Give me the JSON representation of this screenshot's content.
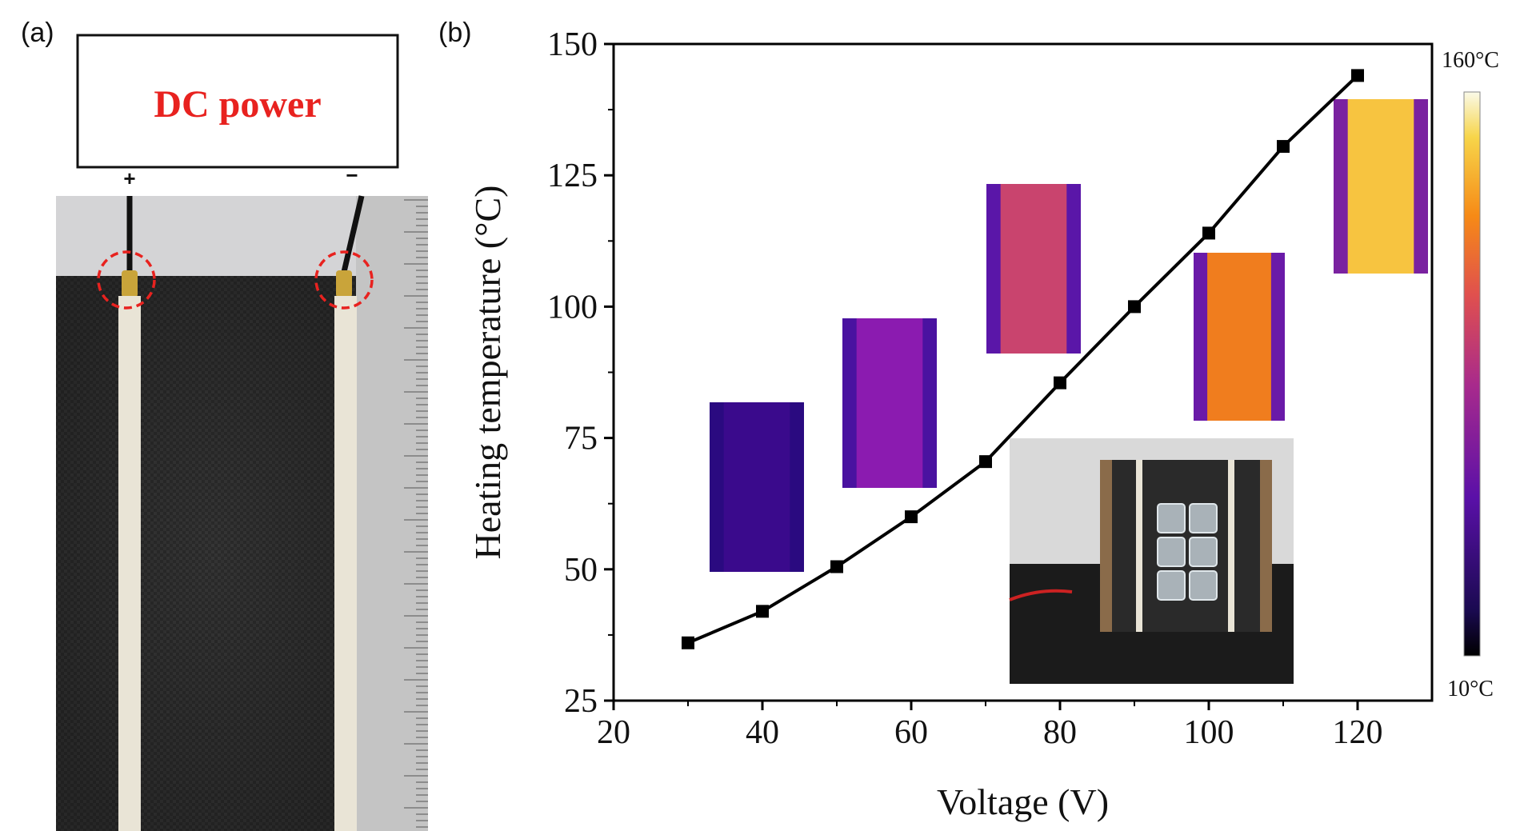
{
  "panel_a": {
    "label": "(a)",
    "power_label": "DC power",
    "plus_sign": "+",
    "minus_sign": "−"
  },
  "panel_b": {
    "label": "(b)"
  },
  "colorbar": {
    "max_label": "160°C",
    "min_label": "10°C"
  },
  "chart_data": {
    "type": "line",
    "title": "",
    "xlabel": "Voltage (V)",
    "ylabel": "Heating temperature (°C)",
    "xlim": [
      20,
      130
    ],
    "ylim": [
      25,
      150
    ],
    "xticks": [
      20,
      40,
      60,
      80,
      100,
      120
    ],
    "yticks": [
      25,
      50,
      75,
      100,
      125,
      150
    ],
    "marker": "square",
    "line_color": "#000000",
    "grid": false,
    "series": [
      {
        "x": [
          30,
          40,
          50,
          60,
          70,
          80,
          90,
          100,
          110,
          120
        ],
        "y": [
          36,
          42,
          50.5,
          60,
          70.5,
          85.5,
          100,
          114,
          130.5,
          144
        ]
      }
    ]
  },
  "thermal_insets": [
    {
      "id": "thermal-30v",
      "core": "#3a0a8c",
      "edge": "#2a0a80"
    },
    {
      "id": "thermal-50v",
      "core": "#8b1bb0",
      "edge": "#4a12a0"
    },
    {
      "id": "thermal-70v",
      "core": "#c9446e",
      "edge": "#5a16a8"
    },
    {
      "id": "thermal-90v",
      "core": "#f07d1e",
      "edge": "#6a1aa8"
    },
    {
      "id": "thermal-120v",
      "core": "#f7c440",
      "edge": "#7a22a0"
    }
  ],
  "colors": {
    "accent_red": "#e8221f",
    "fabric": "#2c2c2c",
    "electrode_strip": "#e9e4d6",
    "ruler": "#c7c7c7"
  }
}
